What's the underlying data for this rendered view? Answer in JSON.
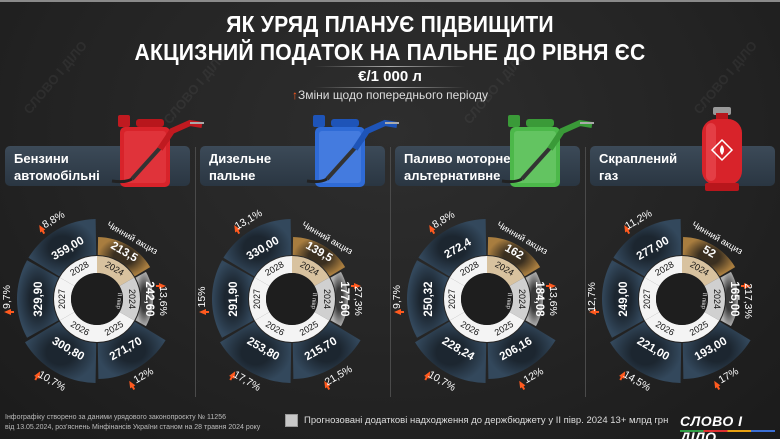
{
  "header": {
    "title_line1": "ЯК УРЯД ПЛАНУЄ ПІДВИЩИТИ",
    "title_line2": "АКЦИЗНИЙ ПОДАТОК НА ПАЛЬНЕ ДО РІВНЯ ЄС",
    "unit": "€/1 000 л",
    "note_arrow": "↑",
    "note": "Зміни щодо попереднього періоду"
  },
  "colors": {
    "current": "#a87d3f",
    "forecast_h2_2024": "#8e8e8e",
    "future": "#33485c",
    "arrow": "#ff5a1f",
    "inner_current": "#d8c29f",
    "inner_h2": "#d0d0d0",
    "inner_future": "#f4f4f4"
  },
  "labels": {
    "current_excise": "Чинний акциз",
    "h2": "II півр"
  },
  "chart_data": [
    {
      "type": "pie",
      "title": "Бензини автомобільні",
      "categories": [
        "2024",
        "2024 II півр",
        "2025",
        "2026",
        "2027",
        "2028"
      ],
      "values": [
        213.5,
        242.6,
        271.7,
        300.8,
        329.9,
        359.0
      ],
      "value_labels": [
        "213,5",
        "242,60",
        "271,70",
        "300,80",
        "329,90",
        "359,00"
      ],
      "changes": [
        "",
        "13,6%",
        "12%",
        "10,7%",
        "9,7%",
        "8,8%"
      ]
    },
    {
      "type": "pie",
      "title": "Дизельне пальне",
      "categories": [
        "2024",
        "2024 II півр",
        "2025",
        "2026",
        "2027",
        "2028"
      ],
      "values": [
        139.5,
        177.6,
        215.7,
        253.8,
        291.9,
        330.0
      ],
      "value_labels": [
        "139,5",
        "177,60",
        "215,70",
        "253,80",
        "291,90",
        "330,00"
      ],
      "changes": [
        "",
        "27,3%",
        "21,5%",
        "17,7%",
        "15%",
        "13,1%"
      ]
    },
    {
      "type": "pie",
      "title": "Паливо моторне альтернативне",
      "categories": [
        "2024",
        "2024 II півр",
        "2025",
        "2026",
        "2027",
        "2028"
      ],
      "values": [
        162,
        184.08,
        206.16,
        228.24,
        250.32,
        272.4
      ],
      "value_labels": [
        "162",
        "184,08",
        "206,16",
        "228,24",
        "250,32",
        "272,4"
      ],
      "changes": [
        "",
        "13,6%",
        "12%",
        "10,7%",
        "9,7%",
        "8,8%"
      ]
    },
    {
      "type": "pie",
      "title": "Скраплений газ",
      "categories": [
        "2024",
        "2024 II півр",
        "2025",
        "2026",
        "2027",
        "2028"
      ],
      "values": [
        52,
        165.0,
        193.0,
        221.0,
        249.0,
        277.0
      ],
      "value_labels": [
        "52",
        "165,00",
        "193,00",
        "221,00",
        "249,00",
        "277,00"
      ],
      "changes": [
        "",
        "217,3%",
        "17%",
        "14,5%",
        "12,7%",
        "11,2%"
      ]
    }
  ],
  "panels": [
    {
      "label_line1": "Бензини",
      "label_line2": "автомобільні",
      "icon": "red-jerrycan-icon"
    },
    {
      "label_line1": "Дизельне",
      "label_line2": "пальне",
      "icon": "blue-jerrycan-icon"
    },
    {
      "label_line1": "Паливо моторне",
      "label_line2": "альтернативне",
      "icon": "green-jerrycan-icon"
    },
    {
      "label_line1": "Скраплений",
      "label_line2": "газ",
      "icon": "gas-cylinder-icon"
    }
  ],
  "footer": {
    "source_line1": "Інфографіку створено за даними урядового законопроєкту № 11256",
    "source_line2": "від 13.05.2024, роз'яснень Мінфінансів України станом на 28 травня 2024 року",
    "legend": "Прогнозовані додаткові надходження до держбюджету у II півр. 2024  13+ млрд грн",
    "logo": "СЛОВО І ДІЛО"
  }
}
